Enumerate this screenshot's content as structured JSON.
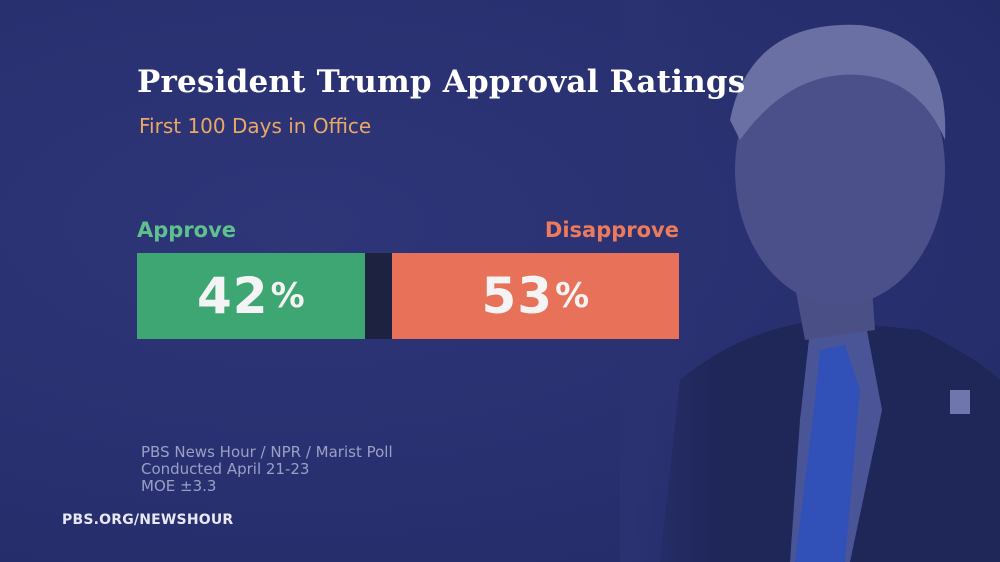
{
  "chart_data": {
    "type": "bar",
    "title": "President Trump Approval Ratings",
    "subtitle": "First 100 Days in Office",
    "categories": [
      "Approve",
      "Disapprove"
    ],
    "values": [
      42,
      53
    ],
    "unit": "%",
    "colors": {
      "Approve": "#3ea673",
      "Disapprove": "#e8715a",
      "background": "#2a3272"
    }
  },
  "source": {
    "line1": "PBS News Hour / NPR / Marist Poll",
    "line2": "Conducted April 21-23",
    "line3": "MOE ±3.3"
  },
  "footer": "PBS.ORG/NEWSHOUR"
}
